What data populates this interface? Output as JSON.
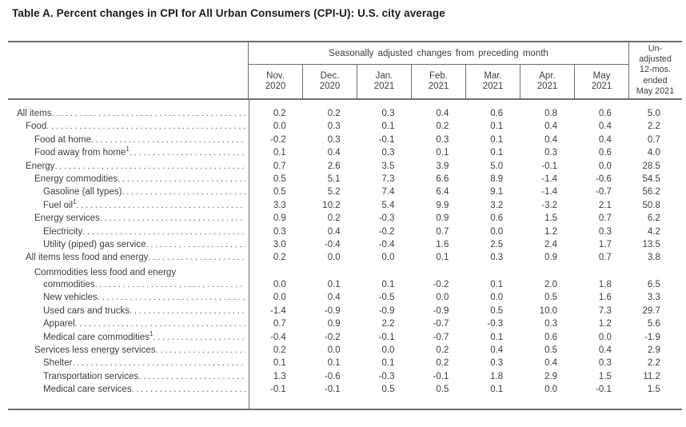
{
  "title": "Table A. Percent changes in CPI for All Urban Consumers (CPI-U): U.S. city average",
  "table": {
    "group_header": "Seasonally adjusted changes from preceding month",
    "month_columns": [
      {
        "line1": "Nov.",
        "line2": "2020"
      },
      {
        "line1": "Dec.",
        "line2": "2020"
      },
      {
        "line1": "Jan.",
        "line2": "2021"
      },
      {
        "line1": "Feb.",
        "line2": "2021"
      },
      {
        "line1": "Mar.",
        "line2": "2021"
      },
      {
        "line1": "Apr.",
        "line2": "2021"
      },
      {
        "line1": "May",
        "line2": "2021"
      }
    ],
    "unadjusted_header_lines": [
      "Un-",
      "adjusted",
      "12-mos.",
      "ended",
      "May 2021"
    ],
    "rows": [
      {
        "label": "All items",
        "indent": 0,
        "values": [
          "0.2",
          "0.2",
          "0.3",
          "0.4",
          "0.6",
          "0.8",
          "0.6",
          "5.0"
        ]
      },
      {
        "label": "Food",
        "indent": 1,
        "values": [
          "0.0",
          "0.3",
          "0.1",
          "0.2",
          "0.1",
          "0.4",
          "0.4",
          "2.2"
        ]
      },
      {
        "label": "Food at home",
        "indent": 2,
        "values": [
          "-0.2",
          "0.3",
          "-0.1",
          "0.3",
          "0.1",
          "0.4",
          "0.4",
          "0.7"
        ]
      },
      {
        "label": "Food away from home",
        "sup": "1",
        "indent": 2,
        "values": [
          "0.1",
          "0.4",
          "0.3",
          "0.1",
          "0.1",
          "0.3",
          "0.6",
          "4.0"
        ]
      },
      {
        "label": "Energy",
        "indent": 1,
        "values": [
          "0.7",
          "2.6",
          "3.5",
          "3.9",
          "5.0",
          "-0.1",
          "0.0",
          "28.5"
        ]
      },
      {
        "label": "Energy commodities",
        "indent": 2,
        "values": [
          "0.5",
          "5.1",
          "7.3",
          "6.6",
          "8.9",
          "-1.4",
          "-0.6",
          "54.5"
        ]
      },
      {
        "label": "Gasoline (all types)",
        "indent": 3,
        "values": [
          "0.5",
          "5.2",
          "7.4",
          "6.4",
          "9.1",
          "-1.4",
          "-0.7",
          "56.2"
        ]
      },
      {
        "label": "Fuel oil",
        "sup": "1",
        "indent": 3,
        "values": [
          "3.3",
          "10.2",
          "5.4",
          "9.9",
          "3.2",
          "-3.2",
          "2.1",
          "50.8"
        ]
      },
      {
        "label": "Energy services",
        "indent": 2,
        "values": [
          "0.9",
          "0.2",
          "-0.3",
          "0.9",
          "0.6",
          "1.5",
          "0.7",
          "6.2"
        ]
      },
      {
        "label": "Electricity",
        "indent": 3,
        "values": [
          "0.3",
          "0.4",
          "-0.2",
          "0.7",
          "0.0",
          "1.2",
          "0.3",
          "4.2"
        ]
      },
      {
        "label": "Utility (piped) gas service",
        "indent": 3,
        "values": [
          "3.0",
          "-0.4",
          "-0.4",
          "1.6",
          "2.5",
          "2.4",
          "1.7",
          "13.5"
        ]
      },
      {
        "label": "All items less food and energy",
        "indent": 1,
        "values": [
          "0.2",
          "0.0",
          "0.0",
          "0.1",
          "0.3",
          "0.9",
          "0.7",
          "3.8"
        ]
      },
      {
        "label": "Commodities less food and energy",
        "label_line2": "commodities",
        "indent": 2,
        "indent2": 3,
        "values": [
          "0.0",
          "0.1",
          "0.1",
          "-0.2",
          "0.1",
          "2.0",
          "1.8",
          "6.5"
        ]
      },
      {
        "label": "New vehicles",
        "indent": 3,
        "values": [
          "0.0",
          "0.4",
          "-0.5",
          "0.0",
          "0.0",
          "0.5",
          "1.6",
          "3.3"
        ]
      },
      {
        "label": "Used cars and trucks",
        "indent": 3,
        "values": [
          "-1.4",
          "-0.9",
          "-0.9",
          "-0.9",
          "0.5",
          "10.0",
          "7.3",
          "29.7"
        ]
      },
      {
        "label": "Apparel",
        "indent": 3,
        "values": [
          "0.7",
          "0.9",
          "2.2",
          "-0.7",
          "-0.3",
          "0.3",
          "1.2",
          "5.6"
        ]
      },
      {
        "label": "Medical care commodities",
        "sup": "1",
        "indent": 3,
        "values": [
          "-0.4",
          "-0.2",
          "-0.1",
          "-0.7",
          "0.1",
          "0.6",
          "0.0",
          "-1.9"
        ]
      },
      {
        "label": "Services less energy services",
        "indent": 2,
        "values": [
          "0.2",
          "0.0",
          "0.0",
          "0.2",
          "0.4",
          "0.5",
          "0.4",
          "2.9"
        ]
      },
      {
        "label": "Shelter",
        "indent": 3,
        "values": [
          "0.1",
          "0.1",
          "0.1",
          "0.2",
          "0.3",
          "0.4",
          "0.3",
          "2.2"
        ]
      },
      {
        "label": "Transportation services",
        "indent": 3,
        "values": [
          "1.3",
          "-0.6",
          "-0.3",
          "-0.1",
          "1.8",
          "2.9",
          "1.5",
          "11.2"
        ]
      },
      {
        "label": "Medical care services",
        "indent": 3,
        "values": [
          "-0.1",
          "-0.1",
          "0.5",
          "0.5",
          "0.1",
          "0.0",
          "-0.1",
          "1.5"
        ]
      }
    ]
  }
}
